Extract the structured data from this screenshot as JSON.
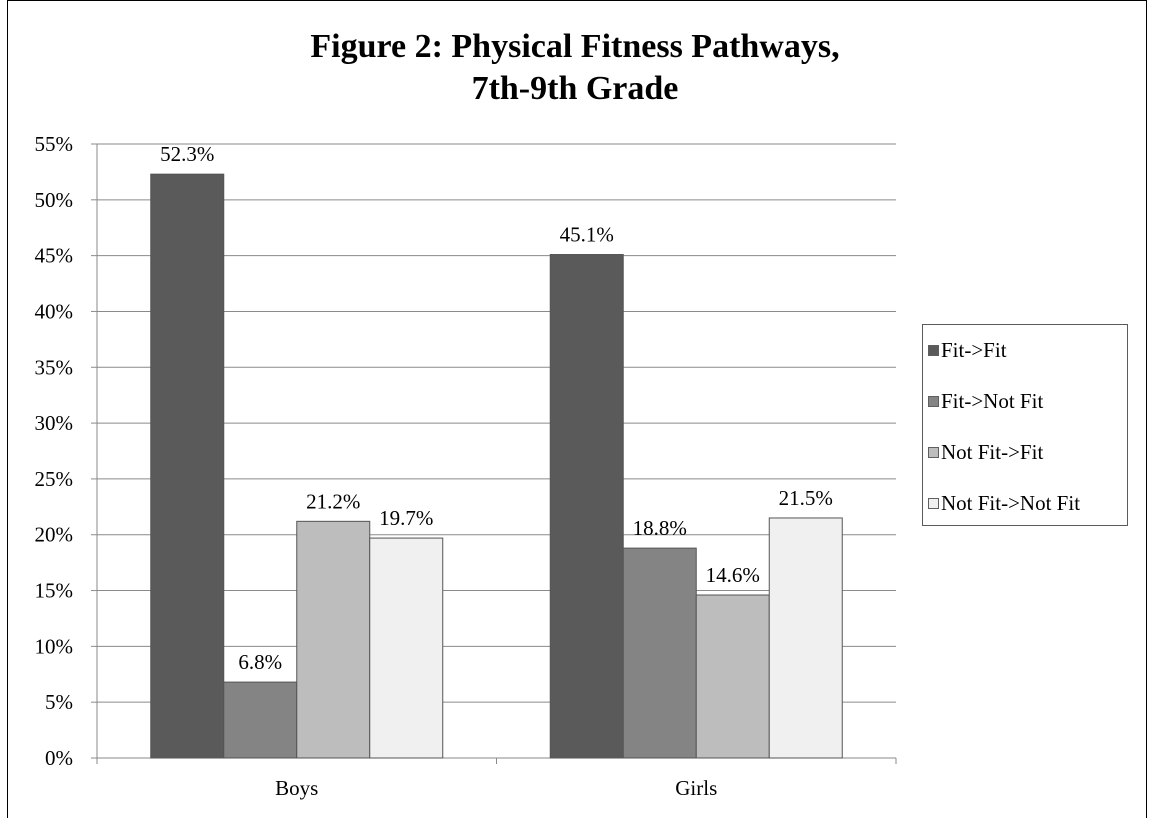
{
  "chart_data": {
    "type": "bar",
    "title": [
      "Figure 2: Physical Fitness Pathways,",
      "7th-9th Grade"
    ],
    "categories": [
      "Boys",
      "Girls"
    ],
    "series": [
      {
        "name": "Fit->Fit",
        "values": [
          52.3,
          45.1
        ],
        "color": "#5a5a5a"
      },
      {
        "name": "Fit->Not Fit",
        "values": [
          6.8,
          18.8
        ],
        "color": "#848484"
      },
      {
        "name": "Not Fit->Fit",
        "values": [
          21.2,
          14.6
        ],
        "color": "#bdbdbd"
      },
      {
        "name": "Not Fit->Not Fit",
        "values": [
          19.7,
          21.5
        ],
        "color": "#f0f0f0"
      }
    ],
    "data_labels": [
      [
        "52.3%",
        "45.1%"
      ],
      [
        "6.8%",
        "18.8%"
      ],
      [
        "21.2%",
        "14.6%"
      ],
      [
        "19.7%",
        "21.5%"
      ]
    ],
    "ylim": [
      0,
      55
    ],
    "yticks": [
      0,
      5,
      10,
      15,
      20,
      25,
      30,
      35,
      40,
      45,
      50,
      55
    ],
    "ytick_labels": [
      "0%",
      "5%",
      "10%",
      "15%",
      "20%",
      "25%",
      "30%",
      "35%",
      "40%",
      "45%",
      "50%",
      "55%"
    ],
    "grid": true,
    "legend_position": "right",
    "xlabel": "",
    "ylabel": ""
  }
}
